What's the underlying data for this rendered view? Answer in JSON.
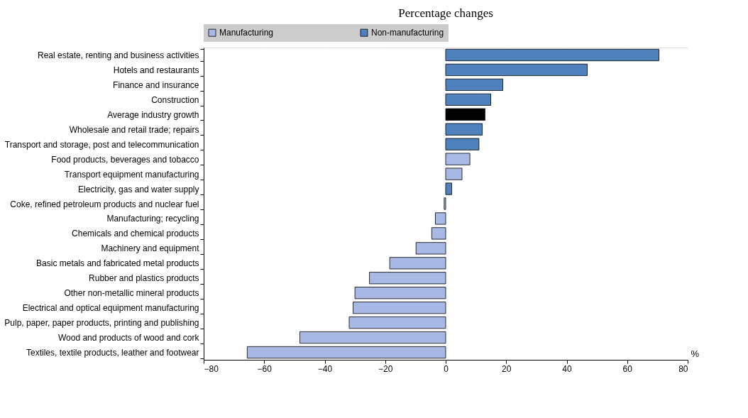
{
  "chart_data": {
    "type": "bar",
    "orientation": "horizontal",
    "title": "Percentage changes",
    "xlabel": "%",
    "categories": [
      "Real estate, renting and business activities",
      "Hotels and restaurants",
      "Finance and insurance",
      "Construction",
      "Average industry growth",
      "Wholesale and retail trade; repairs",
      "Transport and storage, post and telecommunication",
      "Food products, beverages and tobacco",
      "Transport equipment manufacturing",
      "Electricity, gas and water supply",
      "Coke, refined petroleum products and nuclear fuel",
      "Manufacturing; recycling",
      "Chemicals and chemical products",
      "Machinery and equipment",
      "Basic metals and fabricated metal products",
      "Rubber and plastics products",
      "Other non-metallic mineral products",
      "Electrical and optical equipment manufacturing",
      "Pulp, paper, paper products, printing and publishing",
      "Wood and products of wood and cork",
      "Textiles, textile products, leather and footwear"
    ],
    "series": [
      {
        "name": "Manufacturing",
        "color": "#a9b9e5",
        "values": [
          null,
          null,
          null,
          null,
          null,
          null,
          null,
          8.0,
          5.4,
          null,
          -0.5,
          -3.4,
          -4.6,
          -9.8,
          -18.5,
          -25.2,
          -30.0,
          -30.6,
          -31.9,
          -48.2,
          -65.6
        ]
      },
      {
        "name": "Non-manufacturing",
        "color": "#4f81bd",
        "values": [
          70.5,
          46.8,
          18.9,
          14.9,
          null,
          12.1,
          11.0,
          null,
          null,
          2.0,
          null,
          null,
          null,
          null,
          null,
          null,
          null,
          null,
          null,
          null,
          null
        ]
      },
      {
        "color": "#000000",
        "values": [
          null,
          null,
          null,
          null,
          13.0,
          null,
          null,
          null,
          null,
          null,
          null,
          null,
          null,
          null,
          null,
          null,
          null,
          null,
          null,
          null,
          null
        ]
      }
    ],
    "xlim": [
      -80,
      80
    ],
    "xticks": [
      -80,
      -60,
      -40,
      -20,
      0,
      20,
      40,
      60,
      80
    ],
    "grid": true,
    "legend": "top"
  }
}
